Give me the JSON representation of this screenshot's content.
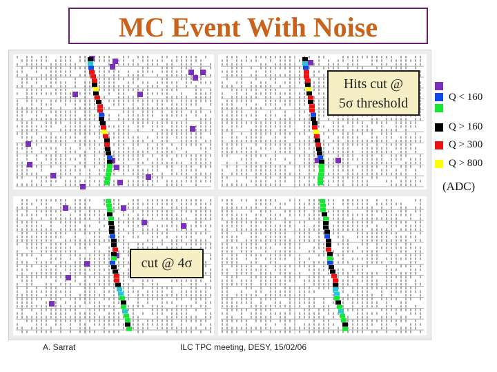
{
  "title": "MC Event With Noise",
  "callouts": {
    "hits_cut_line1": "Hits cut @",
    "hits_cut_line2": "5σ threshold",
    "cut4": "cut @ 4σ"
  },
  "legend": {
    "items": [
      {
        "label": "Q < 160",
        "colors": [
          "#7b2fbe",
          "#1148e8",
          "#14e830"
        ]
      },
      {
        "label": "Q > 160",
        "color": "#000000"
      },
      {
        "label": "Q > 300",
        "color": "#ee1111"
      },
      {
        "label": "Q > 800",
        "color": "#ffff00"
      }
    ],
    "unit": "(ADC)"
  },
  "footer": {
    "author": "A. Sarrat",
    "meeting": "ILC TPC meeting, DESY, 15/02/06"
  },
  "colors": {
    "title": "#c9621b",
    "title_border": "#6a1f6e",
    "callout_bg": "#f6efc5",
    "purple": "#7b2fbe",
    "blue": "#1148e8",
    "green": "#14e830",
    "black": "#000000",
    "red": "#ee1111",
    "yellow": "#ffff00",
    "cyan": "#22c8d8"
  }
}
